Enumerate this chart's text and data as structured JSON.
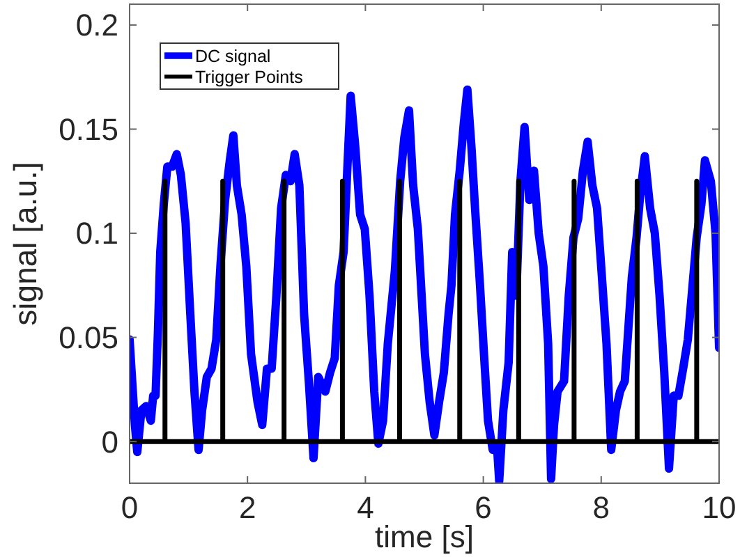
{
  "chart_data": {
    "type": "line",
    "xlabel": "time [s]",
    "ylabel": "signal [a.u.]",
    "xlim": [
      0,
      10
    ],
    "ylim": [
      -0.02,
      0.21
    ],
    "xticks": [
      0,
      2,
      4,
      6,
      8,
      10
    ],
    "yticks": [
      0,
      0.05,
      0.1,
      0.15,
      0.2
    ],
    "grid": false,
    "legend": "top left",
    "line_style": "solid",
    "series": [
      {
        "name": "DC signal",
        "color": "#0000ff",
        "x": [
          0,
          0.09,
          0.13,
          0.2,
          0.28,
          0.36,
          0.4,
          0.44,
          0.48,
          0.52,
          0.58,
          0.64,
          0.72,
          0.8,
          0.87,
          0.95,
          1.03,
          1.1,
          1.17,
          1.23,
          1.31,
          1.39,
          1.47,
          1.54,
          1.62,
          1.7,
          1.76,
          1.82,
          1.9,
          1.98,
          2.06,
          2.17,
          2.25,
          2.33,
          2.41,
          2.49,
          2.57,
          2.65,
          2.73,
          2.8,
          2.88,
          2.96,
          3.04,
          3.12,
          3.2,
          3.32,
          3.4,
          3.48,
          3.55,
          3.63,
          3.7,
          3.75,
          3.83,
          3.91,
          3.99,
          4.07,
          4.15,
          4.22,
          4.3,
          4.38,
          4.5,
          4.59,
          4.66,
          4.74,
          4.81,
          4.89,
          5.01,
          5.09,
          5.17,
          5.25,
          5.33,
          5.41,
          5.46,
          5.52,
          5.6,
          5.67,
          5.73,
          5.8,
          5.86,
          5.94,
          6.02,
          6.08,
          6.16,
          6.23,
          6.27,
          6.34,
          6.43,
          6.49,
          6.56,
          6.63,
          6.7,
          6.78,
          6.86,
          6.94,
          7.02,
          7.1,
          7.15,
          7.2,
          7.26,
          7.37,
          7.45,
          7.53,
          7.61,
          7.69,
          7.77,
          7.85,
          7.93,
          8.0,
          8.09,
          8.17,
          8.25,
          8.32,
          8.4,
          8.52,
          8.6,
          8.66,
          8.74,
          8.83,
          8.91,
          8.99,
          9.07,
          9.15,
          9.23,
          9.31,
          9.39,
          9.47,
          9.55,
          9.62,
          9.7,
          9.76,
          9.86,
          9.94,
          10.0
        ],
        "values": [
          0.049,
          0.008,
          -0.005,
          0.015,
          0.017,
          0.01,
          0.022,
          0.022,
          0.052,
          0.091,
          0.114,
          0.132,
          0.132,
          0.138,
          0.128,
          0.105,
          0.061,
          0.024,
          -0.004,
          0.015,
          0.031,
          0.035,
          0.049,
          0.084,
          0.116,
          0.135,
          0.147,
          0.123,
          0.109,
          0.084,
          0.042,
          0.019,
          0.008,
          0.035,
          0.035,
          0.07,
          0.112,
          0.128,
          0.125,
          0.138,
          0.123,
          0.061,
          0.029,
          -0.008,
          0.031,
          0.024,
          0.033,
          0.04,
          0.075,
          0.091,
          0.135,
          0.166,
          0.141,
          0.109,
          0.102,
          0.07,
          0.024,
          -0.001,
          0.01,
          0.047,
          0.082,
          0.125,
          0.146,
          0.159,
          0.123,
          0.102,
          0.042,
          0.019,
          0.003,
          0.019,
          0.033,
          0.061,
          0.075,
          0.109,
          0.13,
          0.153,
          0.169,
          0.141,
          0.112,
          0.077,
          0.038,
          0.01,
          -0.004,
          -0.001,
          -0.019,
          0.015,
          0.038,
          0.091,
          0.07,
          0.125,
          0.151,
          0.116,
          0.13,
          0.1,
          0.084,
          0.047,
          -0.018,
          0.008,
          0.024,
          0.029,
          0.07,
          0.098,
          0.107,
          0.13,
          0.144,
          0.123,
          0.112,
          0.084,
          0.047,
          -0.004,
          0.015,
          0.024,
          0.029,
          0.079,
          0.098,
          0.118,
          0.137,
          0.112,
          0.1,
          0.07,
          0.033,
          -0.013,
          0.022,
          0.022,
          0.035,
          0.049,
          0.075,
          0.098,
          0.114,
          0.135,
          0.125,
          0.1,
          0.045
        ]
      },
      {
        "name": "Trigger Points",
        "color": "#000000",
        "x": [
          0,
          0.6,
          0.6,
          0.6,
          1.58,
          1.58,
          1.58,
          2.62,
          2.62,
          2.62,
          3.61,
          3.61,
          3.61,
          4.58,
          4.58,
          4.58,
          5.6,
          5.6,
          5.6,
          6.6,
          6.6,
          6.6,
          7.54,
          7.54,
          7.54,
          8.61,
          8.61,
          8.61,
          9.62,
          9.62,
          9.62,
          10
        ],
        "values": [
          0,
          0,
          0.125,
          0,
          0,
          0.125,
          0,
          0,
          0.125,
          0,
          0,
          0.125,
          0,
          0,
          0.125,
          0,
          0,
          0.125,
          0,
          0,
          0.125,
          0,
          0,
          0.125,
          0,
          0,
          0.125,
          0,
          0,
          0.125,
          0,
          0
        ]
      }
    ]
  }
}
